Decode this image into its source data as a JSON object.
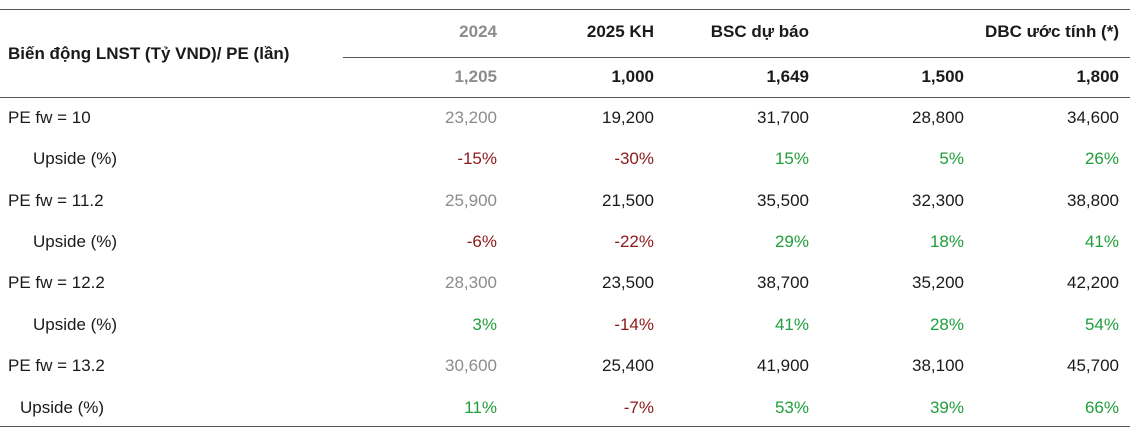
{
  "header": {
    "title": "Biến động LNST (Tỷ VND)/ PE (lần)",
    "columns": [
      "2024",
      "2025 KH",
      "BSC dự báo",
      "DBC ước tính (*)"
    ],
    "profits": [
      "1,205",
      "1,000",
      "1,649",
      "1,500",
      "1,800"
    ]
  },
  "rows": [
    {
      "label": "PE fw = 10",
      "values": [
        "23,200",
        "19,200",
        "31,700",
        "28,800",
        "34,600"
      ]
    },
    {
      "label": "Upside (%)",
      "values": [
        "-15%",
        "-30%",
        "15%",
        "5%",
        "26%"
      ]
    },
    {
      "label": "PE fw = 11.2",
      "values": [
        "25,900",
        "21,500",
        "35,500",
        "32,300",
        "38,800"
      ]
    },
    {
      "label": "Upside (%)",
      "values": [
        "-6%",
        "-22%",
        "29%",
        "18%",
        "41%"
      ]
    },
    {
      "label": "PE fw = 12.2",
      "values": [
        "28,300",
        "23,500",
        "38,700",
        "35,200",
        "42,200"
      ]
    },
    {
      "label": "Upside (%)",
      "values": [
        "3%",
        "-14%",
        "41%",
        "28%",
        "54%"
      ]
    },
    {
      "label": "PE fw = 13.2",
      "values": [
        "30,600",
        "25,400",
        "41,900",
        "38,100",
        "45,700"
      ]
    },
    {
      "label": "Upside (%)",
      "values": [
        "11%",
        "-7%",
        "53%",
        "39%",
        "66%"
      ]
    }
  ],
  "colors": {
    "negative": "#8b1a1a",
    "positive": "#1f9e3a",
    "muted": "#8c8c8c",
    "text": "#1a1a1a"
  }
}
